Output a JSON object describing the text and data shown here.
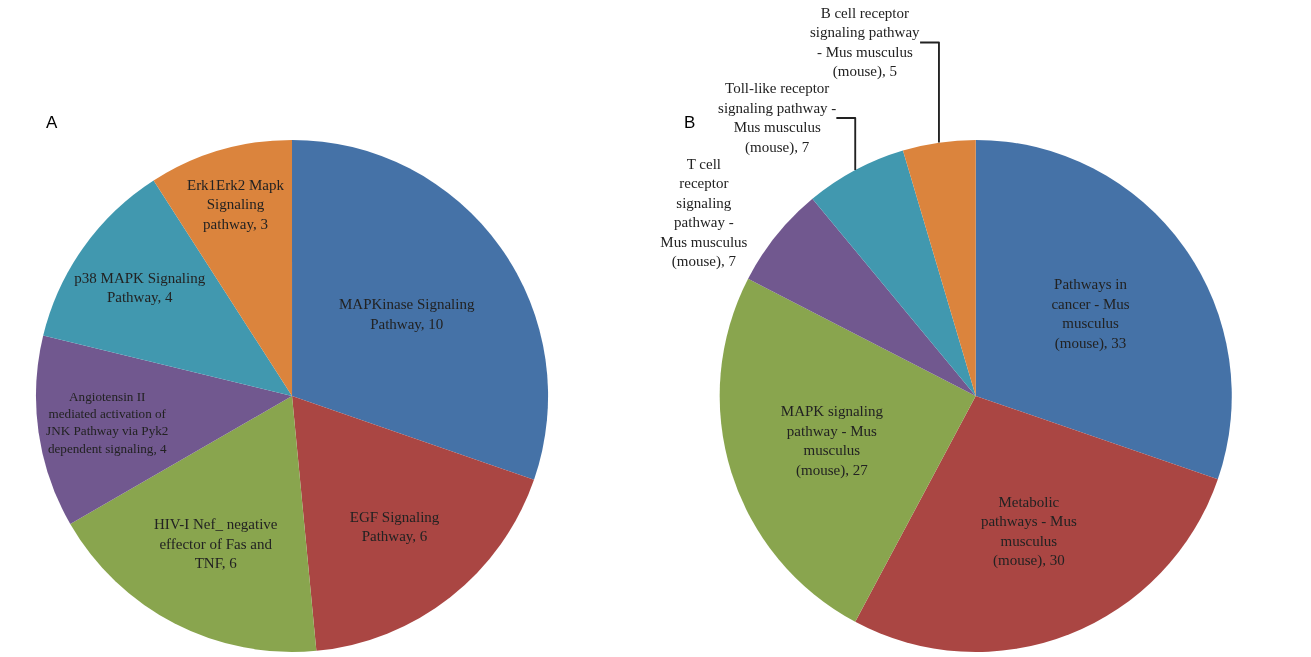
{
  "chart_data": [
    {
      "type": "pie",
      "title": "A",
      "categories": [
        "MAPKinase Signaling Pathway, 10",
        "EGF Signaling Pathway, 6",
        "HIV-I Nef_ negative effector of Fas and TNF, 6",
        "Angiotensin II mediated activation of JNK Pathway via Pyk2 dependent signaling, 4",
        "p38 MAPK Signaling Pathway, 4",
        "Erk1Erk2 Mapk Signaling pathway, 3"
      ],
      "values": [
        10,
        6,
        6,
        4,
        4,
        3
      ],
      "colors": [
        "#4572a7",
        "#aa4643",
        "#89a54e",
        "#71588f",
        "#4198af",
        "#db843d"
      ]
    },
    {
      "type": "pie",
      "title": "B",
      "categories": [
        "Pathways in cancer - Mus musculus (mouse), 33",
        "Metabolic pathways - Mus musculus (mouse), 30",
        "MAPK signaling pathway - Mus musculus (mouse), 27",
        "T cell receptor signaling pathway - Mus musculus (mouse), 7",
        "Toll-like receptor signaling pathway - Mus musculus (mouse), 7",
        "B cell receptor signaling pathway - Mus musculus (mouse), 5"
      ],
      "values": [
        33,
        30,
        27,
        7,
        7,
        5
      ],
      "colors": [
        "#4572a7",
        "#aa4643",
        "#89a54e",
        "#71588f",
        "#4198af",
        "#db843d"
      ]
    }
  ]
}
